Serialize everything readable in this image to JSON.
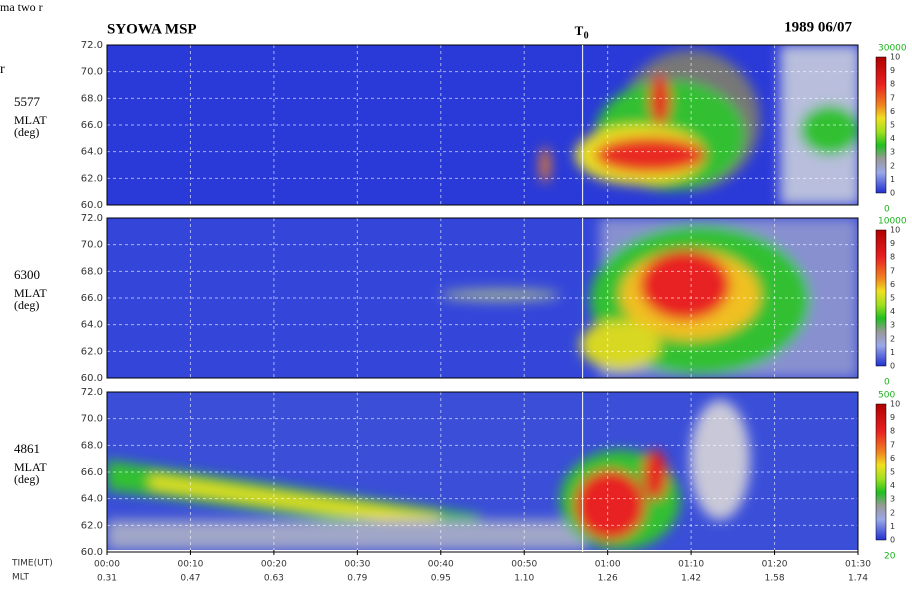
{
  "chart_data": {
    "type": "keogram",
    "fragments": [
      "ma two r",
      "r"
    ],
    "title": "SYOWA  MSP",
    "date": "1989 06/07",
    "marker": "T",
    "marker_sub": "0",
    "xlabel": "TIME(UT)",
    "x2label": "MLT",
    "xlim": [
      0,
      90
    ],
    "xticks": [
      {
        "value": 0,
        "label": "00:00"
      },
      {
        "value": 10,
        "label": "00:10"
      },
      {
        "value": 20,
        "label": "00:20"
      },
      {
        "value": 30,
        "label": "00:30"
      },
      {
        "value": 40,
        "label": "00:40"
      },
      {
        "value": 50,
        "label": "00:50"
      },
      {
        "value": 60,
        "label": "01:00"
      },
      {
        "value": 70,
        "label": "01:10"
      },
      {
        "value": 80,
        "label": "01:20"
      },
      {
        "value": 90,
        "label": "01:30"
      }
    ],
    "x2ticks": [
      "0.31",
      "0.47",
      "0.63",
      "0.79",
      "0.95",
      "1.10",
      "1.26",
      "1.42",
      "1.58",
      "1.74"
    ],
    "marker_x": 57,
    "ylim": [
      60,
      72
    ],
    "yticks": [
      {
        "value": 60,
        "label": "60.0"
      },
      {
        "value": 62,
        "label": "62.0"
      },
      {
        "value": 64,
        "label": "64.0"
      },
      {
        "value": 66,
        "label": "66.0"
      },
      {
        "value": 68,
        "label": "68.0"
      },
      {
        "value": 70,
        "label": "70.0"
      },
      {
        "value": 72,
        "label": "72.0"
      }
    ],
    "colorbar_ticks": [
      0,
      1,
      2,
      3,
      4,
      5,
      6,
      7,
      8,
      9,
      10
    ],
    "panels": [
      {
        "name": "5577",
        "ylabel": "MLAT",
        "yunit": "(deg)",
        "scale_top": "30000",
        "scale_bottom": "0"
      },
      {
        "name": "6300",
        "ylabel": "MLAT",
        "yunit": "(deg)",
        "scale_top": "10000",
        "scale_bottom": "0"
      },
      {
        "name": "4861",
        "ylabel": "MLAT",
        "yunit": "(deg)",
        "scale_top": "500",
        "scale_bottom": "20"
      }
    ],
    "grid": true
  }
}
